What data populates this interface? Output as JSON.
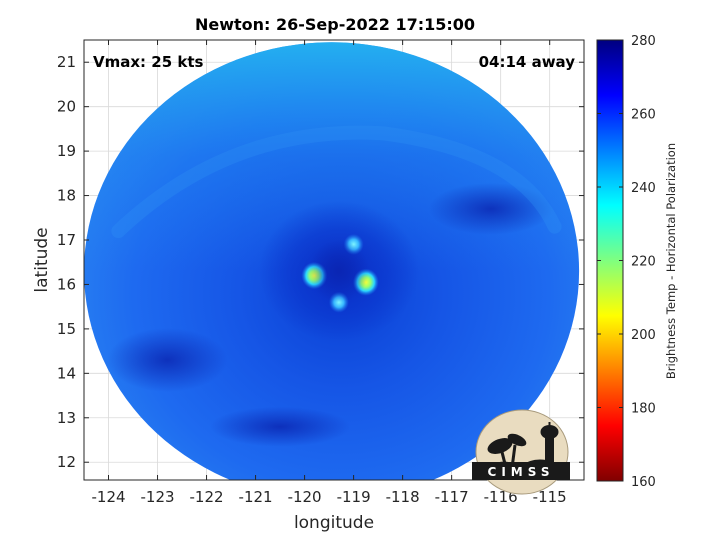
{
  "chart_data": {
    "type": "heatmap",
    "title": "Newton: 26-Sep-2022 17:15:00",
    "xlabel": "longitude",
    "ylabel": "latitude",
    "xlim": [
      -124.5,
      -114.3
    ],
    "ylim": [
      11.6,
      21.5
    ],
    "xticks": [
      -124,
      -123,
      -122,
      -121,
      -120,
      -119,
      -118,
      -117,
      -116,
      -115
    ],
    "yticks": [
      12,
      13,
      14,
      15,
      16,
      17,
      18,
      19,
      20,
      21
    ],
    "grid": true,
    "annotations": {
      "top_left": "Vmax: 25 kts",
      "top_right": "04:14 away"
    },
    "swath": {
      "center": [
        -119.45,
        16.3
      ],
      "radius_lon": 5.05,
      "radius_lat": 5.15
    },
    "background_value": 252,
    "features": [
      {
        "lon": -119.8,
        "lat": 16.2,
        "value": 213
      },
      {
        "lon": -118.75,
        "lat": 16.05,
        "value": 218
      },
      {
        "lon": -119.3,
        "lat": 15.6,
        "value": 238
      },
      {
        "lon": -119.0,
        "lat": 16.9,
        "value": 240
      },
      {
        "lon": -119.3,
        "lat": 16.3,
        "value": 270
      }
    ],
    "colorbar": {
      "label": "Brightness Temp - Horizontal Polarization",
      "min": 160,
      "max": 280,
      "ticks": [
        160,
        180,
        200,
        220,
        240,
        260,
        280
      ],
      "colormap": "jet"
    }
  },
  "logo": {
    "text": "CIMSS"
  }
}
